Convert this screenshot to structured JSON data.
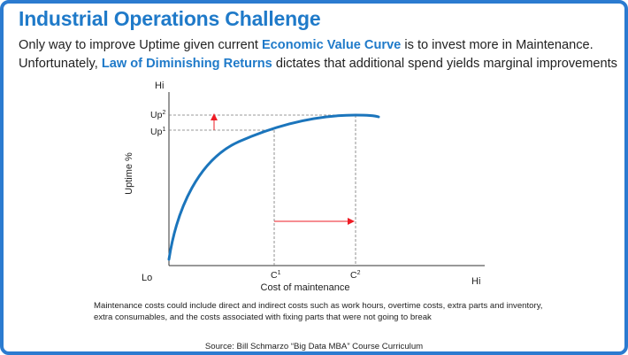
{
  "title": "Industrial Operations Challenge",
  "intro": {
    "line1_pre": "Only way to improve Uptime given current ",
    "line1_hl": "Economic Value Curve",
    "line1_post": " is to invest more in Maintenance.",
    "line2_pre": "Unfortunately, ",
    "line2_hl": "Law of Diminishing Returns",
    "line2_post": " dictates that additional spend yields marginal improvements"
  },
  "diagram": {
    "y_hi": "Hi",
    "origin_lo": "Lo",
    "x_hi": "Hi",
    "ylabel": "Uptime %",
    "xlabel": "Cost of maintenance",
    "up2": {
      "base": "Up",
      "sup": "2"
    },
    "up1": {
      "base": "Up",
      "sup": "1"
    },
    "c1": {
      "base": "C",
      "sup": "1"
    },
    "c2": {
      "base": "C",
      "sup": "2"
    },
    "colors": {
      "curve": "#1b75bc",
      "arrow": "#ee1c25",
      "axis": "#333333",
      "guide": "#777777"
    }
  },
  "note": "Maintenance costs could include direct and indirect costs such as work hours, overtime costs, extra parts and inventory, extra consumables, and the costs associated with fixing parts that were not going to break",
  "source": "Source: Bill Schmarzo “Big Data MBA” Course Curriculum",
  "colors": {
    "accent": "#1f7ac9",
    "border": "#2b7bd0"
  }
}
